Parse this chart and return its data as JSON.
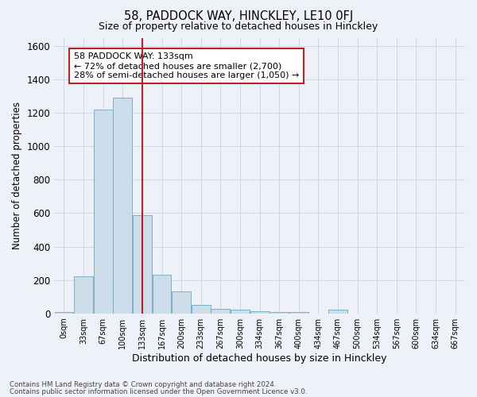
{
  "title": "58, PADDOCK WAY, HINCKLEY, LE10 0FJ",
  "subtitle": "Size of property relative to detached houses in Hinckley",
  "xlabel": "Distribution of detached houses by size in Hinckley",
  "ylabel": "Number of detached properties",
  "footnote1": "Contains HM Land Registry data © Crown copyright and database right 2024.",
  "footnote2": "Contains public sector information licensed under the Open Government Licence v3.0.",
  "bin_labels": [
    "0sqm",
    "33sqm",
    "67sqm",
    "100sqm",
    "133sqm",
    "167sqm",
    "200sqm",
    "233sqm",
    "267sqm",
    "300sqm",
    "334sqm",
    "367sqm",
    "400sqm",
    "434sqm",
    "467sqm",
    "500sqm",
    "534sqm",
    "567sqm",
    "600sqm",
    "634sqm",
    "667sqm"
  ],
  "bar_heights": [
    10,
    220,
    1220,
    1290,
    590,
    230,
    130,
    50,
    25,
    20,
    15,
    10,
    10,
    0,
    20,
    0,
    0,
    0,
    0,
    0,
    0
  ],
  "bar_color": "#ccdce8",
  "bar_edge_color": "#7ab0cc",
  "vline_x_index": 4,
  "vline_color": "#bb2222",
  "annotation_text": "58 PADDOCK WAY: 133sqm\n← 72% of detached houses are smaller (2,700)\n28% of semi-detached houses are larger (1,050) →",
  "annotation_box_facecolor": "#ffffff",
  "annotation_box_edgecolor": "#bb2222",
  "ylim": [
    0,
    1650
  ],
  "yticks": [
    0,
    200,
    400,
    600,
    800,
    1000,
    1200,
    1400,
    1600
  ],
  "grid_color": "#d0d8e8",
  "background_color": "#eef2f8",
  "plot_bg_color": "#eef2f8"
}
